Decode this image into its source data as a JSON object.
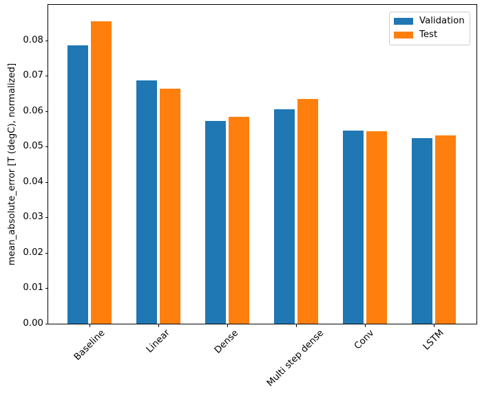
{
  "chart_data": {
    "type": "bar",
    "title": "",
    "xlabel": "",
    "ylabel": "mean_absolute_error [T (degC), normalized]",
    "categories": [
      "Baseline",
      "Linear",
      "Dense",
      "Multi step dense",
      "Conv",
      "LSTM"
    ],
    "series": [
      {
        "name": "Validation",
        "color": "#1f77b4",
        "values": [
          0.0785,
          0.0687,
          0.0572,
          0.0606,
          0.0545,
          0.0524
        ]
      },
      {
        "name": "Test",
        "color": "#ff7f0e",
        "values": [
          0.0853,
          0.0663,
          0.0583,
          0.0634,
          0.0543,
          0.0532
        ]
      }
    ],
    "ylim": [
      0,
      0.09
    ],
    "yticks": [
      0,
      0.01,
      0.02,
      0.03,
      0.04,
      0.05,
      0.06,
      0.07,
      0.08
    ],
    "ytick_labels": [
      "0.00",
      "0.01",
      "0.02",
      "0.03",
      "0.04",
      "0.05",
      "0.06",
      "0.07",
      "0.08"
    ],
    "grid": false,
    "legend": {
      "position": "upper right",
      "entries": [
        "Validation",
        "Test"
      ]
    },
    "bar_width": 0.3,
    "bar_offset": 0.17,
    "xtick_rotation_deg": 45
  }
}
